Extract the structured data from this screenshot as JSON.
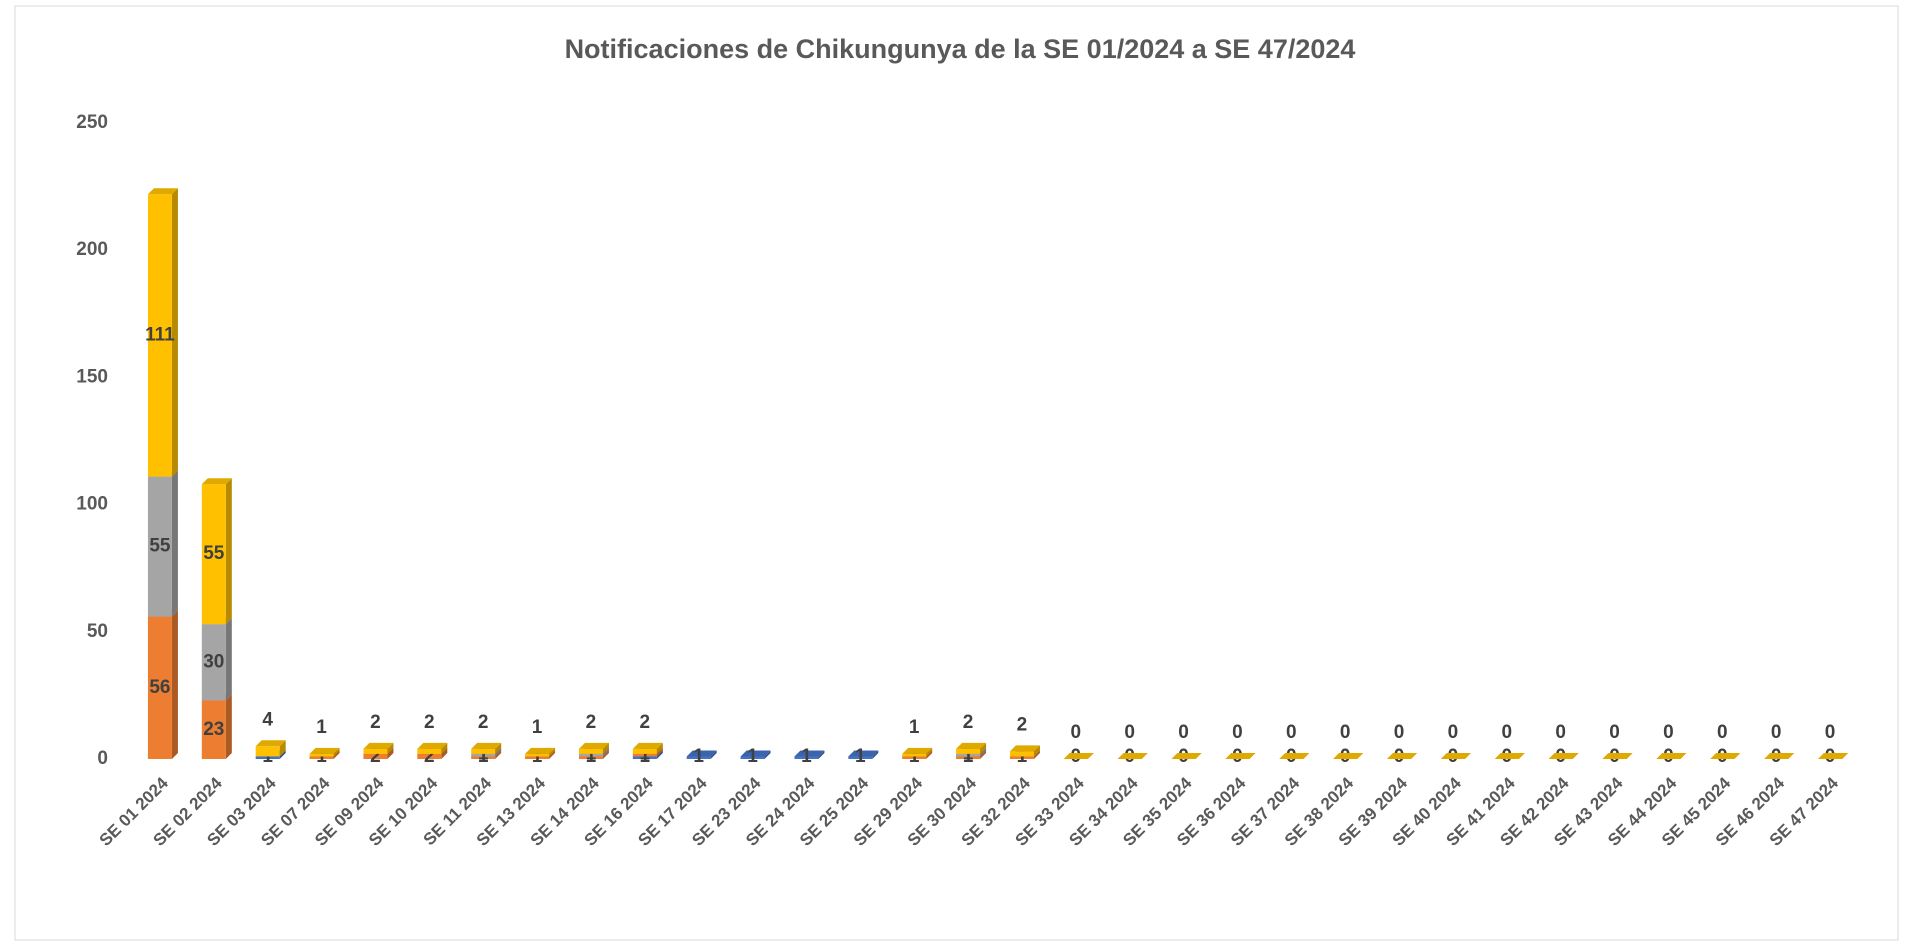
{
  "chart_data": {
    "type": "bar",
    "stacked": true,
    "title": "Notificaciones de Chikungunya de la SE 01/2024 a SE 47/2024",
    "categories": [
      "SE 01 2024",
      "SE 02 2024",
      "SE 03 2024",
      "SE 07 2024",
      "SE 09 2024",
      "SE 10 2024",
      "SE 11 2024",
      "SE 13 2024",
      "SE 14 2024",
      "SE 16 2024",
      "SE 17 2024",
      "SE 23 2024",
      "SE 24 2024",
      "SE 25 2024",
      "SE 29 2024",
      "SE 30 2024",
      "SE 32 2024",
      "SE 33 2024",
      "SE 34 2024",
      "SE 35 2024",
      "SE 36 2024",
      "SE 37 2024",
      "SE 38 2024",
      "SE 39 2024",
      "SE 40 2024",
      "SE 41 2024",
      "SE 42 2024",
      "SE 43 2024",
      "SE 44 2024",
      "SE 45 2024",
      "SE 46 2024",
      "SE 47 2024"
    ],
    "series": [
      {
        "color": "#4472c4",
        "values": [
          null,
          null,
          1,
          null,
          null,
          null,
          null,
          null,
          null,
          1,
          1,
          1,
          1,
          1,
          null,
          null,
          null,
          null,
          null,
          null,
          null,
          null,
          null,
          null,
          null,
          null,
          null,
          null,
          null,
          null,
          null,
          null
        ]
      },
      {
        "color": "#ed7d31",
        "values": [
          56,
          23,
          null,
          1,
          2,
          2,
          1,
          1,
          1,
          1,
          null,
          null,
          null,
          null,
          1,
          1,
          1,
          0,
          0,
          0,
          0,
          0,
          0,
          0,
          0,
          0,
          0,
          0,
          0,
          0,
          0,
          0
        ]
      },
      {
        "color": "#a5a5a5",
        "values": [
          55,
          30,
          null,
          null,
          null,
          null,
          1,
          null,
          1,
          null,
          null,
          null,
          null,
          null,
          null,
          1,
          null,
          null,
          null,
          null,
          null,
          null,
          null,
          null,
          null,
          null,
          null,
          null,
          null,
          null,
          null,
          null
        ]
      },
      {
        "color": "#ffc000",
        "values": [
          111,
          55,
          4,
          1,
          2,
          2,
          2,
          1,
          2,
          2,
          null,
          null,
          null,
          null,
          1,
          2,
          2,
          0,
          0,
          0,
          0,
          0,
          0,
          0,
          0,
          0,
          0,
          0,
          0,
          0,
          0,
          0
        ]
      }
    ],
    "ylim": [
      0,
      250
    ],
    "yticks": [
      0,
      50,
      100,
      150,
      200,
      250
    ],
    "grid": false
  }
}
